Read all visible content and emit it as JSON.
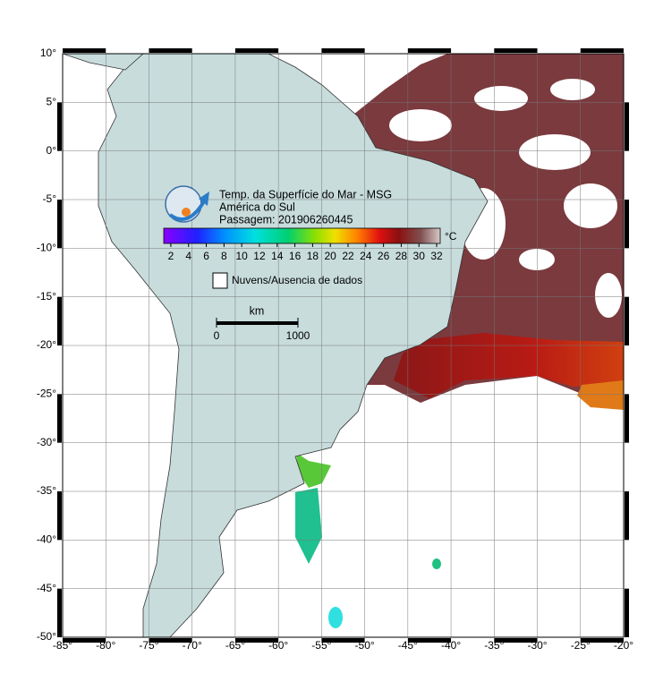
{
  "map": {
    "title": "Temp. da Superfície do Mar - MSG",
    "region": "América do Sul",
    "pass": "Passagem: 201906260445",
    "lonlim": [
      -85,
      -20
    ],
    "latlim": [
      -50,
      10
    ],
    "lonticks": [
      {
        "value": -85,
        "label": "-85°"
      },
      {
        "value": -80,
        "label": "-80°"
      },
      {
        "value": -75,
        "label": "-75°"
      },
      {
        "value": -70,
        "label": "-70°"
      },
      {
        "value": -65,
        "label": "-65°"
      },
      {
        "value": -60,
        "label": "-60°"
      },
      {
        "value": -55,
        "label": "-55°"
      },
      {
        "value": -50,
        "label": "-50°"
      },
      {
        "value": -45,
        "label": "-45°"
      },
      {
        "value": -40,
        "label": "-40°"
      },
      {
        "value": -35,
        "label": "-35°"
      },
      {
        "value": -30,
        "label": "-30°"
      },
      {
        "value": -25,
        "label": "-25°"
      },
      {
        "value": -20,
        "label": "-20°"
      }
    ],
    "latticks": [
      {
        "value": 10,
        "label": "10°"
      },
      {
        "value": 5,
        "label": "5°"
      },
      {
        "value": 0,
        "label": "0°"
      },
      {
        "value": -5,
        "label": "-5°"
      },
      {
        "value": -10,
        "label": "-10°"
      },
      {
        "value": -15,
        "label": "-15°"
      },
      {
        "value": -20,
        "label": "-20°"
      },
      {
        "value": -25,
        "label": "-25°"
      },
      {
        "value": -30,
        "label": "-30°"
      },
      {
        "value": -35,
        "label": "-35°"
      },
      {
        "value": -40,
        "label": "-40°"
      },
      {
        "value": -45,
        "label": "-45°"
      },
      {
        "value": -50,
        "label": "-50°"
      }
    ],
    "colorbar": {
      "lim": [
        1.2,
        32.4
      ],
      "ticks": [
        2,
        4,
        6,
        8,
        10,
        12,
        14,
        16,
        18,
        20,
        22,
        24,
        26,
        28,
        30,
        32
      ],
      "unit": "°C"
    },
    "legend": "Nuvens/Ausencia de dados",
    "scale": {
      "unit": "km",
      "ticks": [
        0,
        1000
      ]
    }
  }
}
